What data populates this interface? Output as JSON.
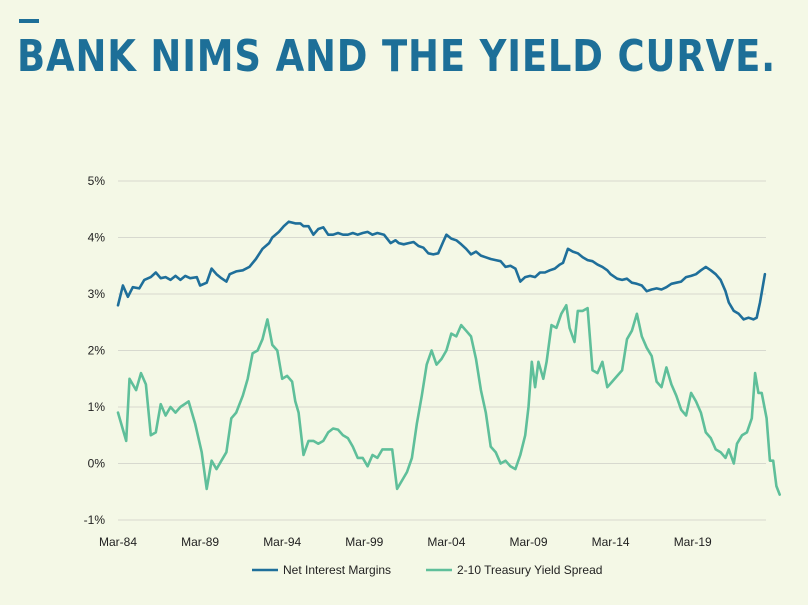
{
  "header": {
    "title": "BANK NIMS AND THE YIELD CURVE."
  },
  "colors": {
    "accent": "#1d6f98",
    "nim": "#1f6f9a",
    "spread": "#5fbf9a",
    "background": "#f4f8e6",
    "grid": "#d7d9cf"
  },
  "chart_data": {
    "type": "line",
    "title": "",
    "xlabel": "",
    "ylabel": "",
    "x_unit": "year",
    "xlim": [
      1984.0,
      2023.4
    ],
    "ylim": [
      -1,
      5
    ],
    "y_ticks": [
      "-1%",
      "0%",
      "1%",
      "2%",
      "3%",
      "4%",
      "5%"
    ],
    "x_ticks": [
      {
        "label": "Mar-84",
        "x": 1984.0
      },
      {
        "label": "Mar-89",
        "x": 1989.0
      },
      {
        "label": "Mar-94",
        "x": 1994.0
      },
      {
        "label": "Mar-99",
        "x": 1999.0
      },
      {
        "label": "Mar-04",
        "x": 2004.0
      },
      {
        "label": "Mar-09",
        "x": 2009.0
      },
      {
        "label": "Mar-14",
        "x": 2014.0
      },
      {
        "label": "Mar-19",
        "x": 2019.0
      }
    ],
    "grid": "horizontal",
    "legend_position": "bottom",
    "series": [
      {
        "name": "Net Interest Margins",
        "points": [
          [
            1984.0,
            2.8
          ],
          [
            1984.3,
            3.15
          ],
          [
            1984.6,
            2.95
          ],
          [
            1984.9,
            3.12
          ],
          [
            1985.3,
            3.1
          ],
          [
            1985.6,
            3.25
          ],
          [
            1986.0,
            3.3
          ],
          [
            1986.3,
            3.38
          ],
          [
            1986.6,
            3.28
          ],
          [
            1986.9,
            3.3
          ],
          [
            1987.2,
            3.25
          ],
          [
            1987.5,
            3.32
          ],
          [
            1987.8,
            3.25
          ],
          [
            1988.1,
            3.32
          ],
          [
            1988.4,
            3.28
          ],
          [
            1988.8,
            3.3
          ],
          [
            1989.0,
            3.15
          ],
          [
            1989.4,
            3.2
          ],
          [
            1989.7,
            3.45
          ],
          [
            1990.0,
            3.35
          ],
          [
            1990.3,
            3.28
          ],
          [
            1990.6,
            3.22
          ],
          [
            1990.8,
            3.35
          ],
          [
            1991.2,
            3.4
          ],
          [
            1991.6,
            3.42
          ],
          [
            1992.0,
            3.48
          ],
          [
            1992.4,
            3.62
          ],
          [
            1992.8,
            3.8
          ],
          [
            1993.2,
            3.9
          ],
          [
            1993.4,
            4.0
          ],
          [
            1993.8,
            4.1
          ],
          [
            1994.1,
            4.2
          ],
          [
            1994.4,
            4.28
          ],
          [
            1994.8,
            4.25
          ],
          [
            1995.1,
            4.25
          ],
          [
            1995.3,
            4.2
          ],
          [
            1995.6,
            4.2
          ],
          [
            1995.9,
            4.05
          ],
          [
            1996.2,
            4.15
          ],
          [
            1996.5,
            4.18
          ],
          [
            1996.8,
            4.05
          ],
          [
            1997.1,
            4.05
          ],
          [
            1997.4,
            4.08
          ],
          [
            1997.7,
            4.05
          ],
          [
            1998.0,
            4.05
          ],
          [
            1998.3,
            4.08
          ],
          [
            1998.6,
            4.05
          ],
          [
            1998.9,
            4.08
          ],
          [
            1999.2,
            4.1
          ],
          [
            1999.5,
            4.05
          ],
          [
            1999.8,
            4.08
          ],
          [
            2000.2,
            4.05
          ],
          [
            2000.6,
            3.9
          ],
          [
            2000.9,
            3.95
          ],
          [
            2001.1,
            3.9
          ],
          [
            2001.4,
            3.88
          ],
          [
            2001.7,
            3.9
          ],
          [
            2002.0,
            3.92
          ],
          [
            2002.3,
            3.85
          ],
          [
            2002.6,
            3.82
          ],
          [
            2002.9,
            3.72
          ],
          [
            2003.2,
            3.7
          ],
          [
            2003.5,
            3.72
          ],
          [
            2003.8,
            3.92
          ],
          [
            2004.0,
            4.05
          ],
          [
            2004.3,
            3.98
          ],
          [
            2004.6,
            3.95
          ],
          [
            2004.9,
            3.88
          ],
          [
            2005.2,
            3.8
          ],
          [
            2005.5,
            3.7
          ],
          [
            2005.8,
            3.75
          ],
          [
            2006.1,
            3.68
          ],
          [
            2006.4,
            3.65
          ],
          [
            2006.7,
            3.62
          ],
          [
            2007.0,
            3.6
          ],
          [
            2007.3,
            3.58
          ],
          [
            2007.6,
            3.48
          ],
          [
            2007.9,
            3.5
          ],
          [
            2008.2,
            3.45
          ],
          [
            2008.5,
            3.22
          ],
          [
            2008.8,
            3.3
          ],
          [
            2009.1,
            3.32
          ],
          [
            2009.4,
            3.3
          ],
          [
            2009.7,
            3.38
          ],
          [
            2010.0,
            3.38
          ],
          [
            2010.3,
            3.42
          ],
          [
            2010.6,
            3.45
          ],
          [
            2010.9,
            3.52
          ],
          [
            2011.1,
            3.55
          ],
          [
            2011.4,
            3.8
          ],
          [
            2011.7,
            3.75
          ],
          [
            2012.0,
            3.72
          ],
          [
            2012.3,
            3.65
          ],
          [
            2012.6,
            3.6
          ],
          [
            2012.9,
            3.58
          ],
          [
            2013.2,
            3.52
          ],
          [
            2013.5,
            3.48
          ],
          [
            2013.8,
            3.42
          ],
          [
            2014.0,
            3.35
          ],
          [
            2014.4,
            3.27
          ],
          [
            2014.7,
            3.25
          ],
          [
            2015.0,
            3.27
          ],
          [
            2015.3,
            3.2
          ],
          [
            2015.6,
            3.18
          ],
          [
            2015.9,
            3.15
          ],
          [
            2016.2,
            3.05
          ],
          [
            2016.5,
            3.08
          ],
          [
            2016.8,
            3.1
          ],
          [
            2017.1,
            3.08
          ],
          [
            2017.4,
            3.12
          ],
          [
            2017.7,
            3.18
          ],
          [
            2018.0,
            3.2
          ],
          [
            2018.3,
            3.22
          ],
          [
            2018.6,
            3.3
          ],
          [
            2018.9,
            3.32
          ],
          [
            2019.2,
            3.35
          ],
          [
            2019.5,
            3.42
          ],
          [
            2019.8,
            3.48
          ],
          [
            2020.1,
            3.42
          ],
          [
            2020.4,
            3.35
          ],
          [
            2020.7,
            3.25
          ],
          [
            2021.0,
            3.05
          ],
          [
            2021.2,
            2.85
          ],
          [
            2021.5,
            2.7
          ],
          [
            2021.8,
            2.65
          ],
          [
            2022.1,
            2.55
          ],
          [
            2022.4,
            2.58
          ],
          [
            2022.7,
            2.55
          ],
          [
            2022.9,
            2.58
          ],
          [
            2023.1,
            2.85
          ],
          [
            2023.4,
            3.35
          ]
        ]
      },
      {
        "name": "2-10 Treasury Yield Spread",
        "points": [
          [
            1984.0,
            0.9
          ],
          [
            1984.5,
            0.4
          ],
          [
            1984.7,
            1.5
          ],
          [
            1985.1,
            1.3
          ],
          [
            1985.4,
            1.6
          ],
          [
            1985.7,
            1.4
          ],
          [
            1986.0,
            0.5
          ],
          [
            1986.3,
            0.55
          ],
          [
            1986.6,
            1.05
          ],
          [
            1986.9,
            0.85
          ],
          [
            1987.2,
            1.0
          ],
          [
            1987.5,
            0.9
          ],
          [
            1987.8,
            1.0
          ],
          [
            1988.3,
            1.1
          ],
          [
            1988.7,
            0.7
          ],
          [
            1989.1,
            0.2
          ],
          [
            1989.4,
            -0.45
          ],
          [
            1989.7,
            0.05
          ],
          [
            1990.0,
            -0.1
          ],
          [
            1990.3,
            0.05
          ],
          [
            1990.6,
            0.2
          ],
          [
            1990.9,
            0.8
          ],
          [
            1991.2,
            0.9
          ],
          [
            1991.6,
            1.2
          ],
          [
            1991.9,
            1.5
          ],
          [
            1992.2,
            1.95
          ],
          [
            1992.5,
            2.0
          ],
          [
            1992.8,
            2.2
          ],
          [
            1993.1,
            2.55
          ],
          [
            1993.4,
            2.1
          ],
          [
            1993.7,
            2.0
          ],
          [
            1994.0,
            1.5
          ],
          [
            1994.3,
            1.55
          ],
          [
            1994.6,
            1.45
          ],
          [
            1994.8,
            1.1
          ],
          [
            1995.0,
            0.9
          ],
          [
            1995.3,
            0.15
          ],
          [
            1995.6,
            0.4
          ],
          [
            1995.9,
            0.4
          ],
          [
            1996.2,
            0.35
          ],
          [
            1996.5,
            0.4
          ],
          [
            1996.8,
            0.55
          ],
          [
            1997.1,
            0.62
          ],
          [
            1997.4,
            0.6
          ],
          [
            1997.7,
            0.5
          ],
          [
            1998.0,
            0.45
          ],
          [
            1998.3,
            0.3
          ],
          [
            1998.6,
            0.1
          ],
          [
            1998.9,
            0.1
          ],
          [
            1999.2,
            -0.05
          ],
          [
            1999.5,
            0.15
          ],
          [
            1999.8,
            0.1
          ],
          [
            2000.1,
            0.25
          ],
          [
            2000.4,
            0.25
          ],
          [
            2000.7,
            0.25
          ],
          [
            2001.0,
            -0.45
          ],
          [
            2001.3,
            -0.3
          ],
          [
            2001.6,
            -0.15
          ],
          [
            2001.9,
            0.1
          ],
          [
            2002.2,
            0.7
          ],
          [
            2002.5,
            1.2
          ],
          [
            2002.8,
            1.75
          ],
          [
            2003.1,
            2.0
          ],
          [
            2003.4,
            1.75
          ],
          [
            2003.7,
            1.85
          ],
          [
            2004.0,
            2.0
          ],
          [
            2004.3,
            2.3
          ],
          [
            2004.6,
            2.25
          ],
          [
            2004.9,
            2.45
          ],
          [
            2005.2,
            2.35
          ],
          [
            2005.5,
            2.25
          ],
          [
            2005.8,
            1.85
          ],
          [
            2006.1,
            1.3
          ],
          [
            2006.4,
            0.9
          ],
          [
            2006.7,
            0.3
          ],
          [
            2007.0,
            0.2
          ],
          [
            2007.3,
            0.0
          ],
          [
            2007.6,
            0.05
          ],
          [
            2007.9,
            -0.05
          ],
          [
            2008.2,
            -0.1
          ],
          [
            2008.5,
            0.15
          ],
          [
            2008.8,
            0.5
          ],
          [
            2009.0,
            1.0
          ],
          [
            2009.2,
            1.8
          ],
          [
            2009.4,
            1.35
          ],
          [
            2009.6,
            1.8
          ],
          [
            2009.9,
            1.5
          ],
          [
            2010.1,
            1.8
          ],
          [
            2010.4,
            2.45
          ],
          [
            2010.7,
            2.4
          ],
          [
            2011.0,
            2.65
          ],
          [
            2011.3,
            2.8
          ],
          [
            2011.5,
            2.4
          ],
          [
            2011.8,
            2.15
          ],
          [
            2012.0,
            2.7
          ],
          [
            2012.3,
            2.7
          ],
          [
            2012.6,
            2.75
          ],
          [
            2012.9,
            1.65
          ],
          [
            2013.2,
            1.6
          ],
          [
            2013.5,
            1.8
          ],
          [
            2013.8,
            1.35
          ],
          [
            2014.1,
            1.45
          ],
          [
            2014.4,
            1.55
          ],
          [
            2014.7,
            1.65
          ],
          [
            2015.0,
            2.2
          ],
          [
            2015.3,
            2.35
          ],
          [
            2015.6,
            2.65
          ],
          [
            2015.9,
            2.25
          ],
          [
            2016.2,
            2.05
          ],
          [
            2016.5,
            1.9
          ],
          [
            2016.8,
            1.45
          ],
          [
            2017.1,
            1.35
          ],
          [
            2017.4,
            1.7
          ],
          [
            2017.7,
            1.4
          ],
          [
            2018.0,
            1.2
          ],
          [
            2018.3,
            0.95
          ],
          [
            2018.6,
            0.85
          ],
          [
            2018.9,
            1.25
          ],
          [
            2019.2,
            1.1
          ],
          [
            2019.5,
            0.9
          ],
          [
            2019.8,
            0.55
          ],
          [
            2020.1,
            0.45
          ],
          [
            2020.4,
            0.25
          ],
          [
            2020.7,
            0.2
          ],
          [
            2021.0,
            0.1
          ],
          [
            2021.2,
            0.25
          ],
          [
            2021.5,
            0.0
          ],
          [
            2021.7,
            0.35
          ],
          [
            2022.0,
            0.5
          ],
          [
            2022.3,
            0.55
          ],
          [
            2022.6,
            0.8
          ],
          [
            2022.8,
            1.6
          ],
          [
            2023.0,
            1.25
          ],
          [
            2023.2,
            1.25
          ],
          [
            2023.5,
            0.8
          ],
          [
            2023.7,
            0.05
          ],
          [
            2023.9,
            0.05
          ],
          [
            2024.1,
            -0.4
          ],
          [
            2024.3,
            -0.55
          ]
        ]
      }
    ]
  }
}
